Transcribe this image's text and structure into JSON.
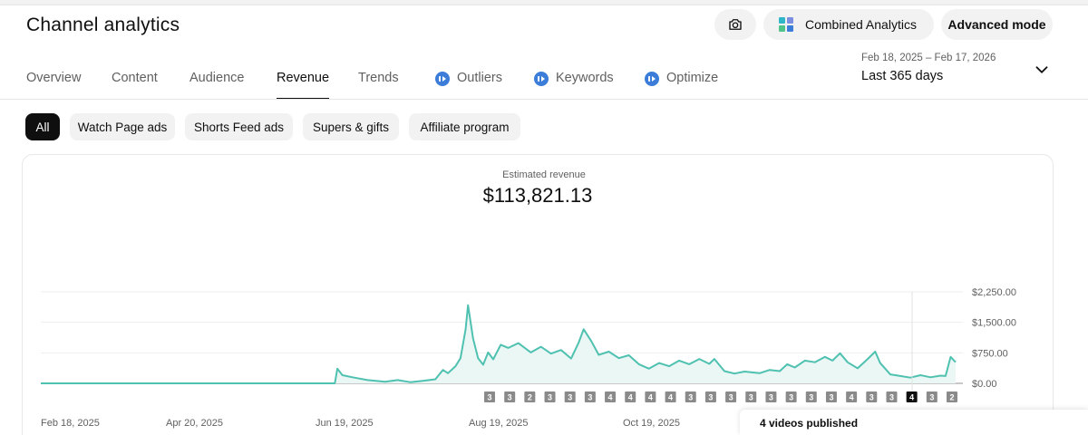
{
  "header": {
    "title": "Channel analytics",
    "combined_label": "Combined Analytics",
    "advanced_label": "Advanced mode"
  },
  "tabs": [
    {
      "label": "Overview",
      "active": false,
      "icon": null
    },
    {
      "label": "Content",
      "active": false,
      "icon": null
    },
    {
      "label": "Audience",
      "active": false,
      "icon": null
    },
    {
      "label": "Revenue",
      "active": true,
      "icon": null
    },
    {
      "label": "Trends",
      "active": false,
      "icon": null
    },
    {
      "label": "Outliers",
      "active": false,
      "icon": "extension-icon"
    },
    {
      "label": "Keywords",
      "active": false,
      "icon": "extension-icon"
    },
    {
      "label": "Optimize",
      "active": false,
      "icon": "extension-icon"
    }
  ],
  "date": {
    "range": "Feb 18, 2025 – Feb 17, 2026",
    "label": "Last 365 days"
  },
  "chips": [
    {
      "label": "All",
      "active": true
    },
    {
      "label": "Watch Page ads",
      "active": false
    },
    {
      "label": "Shorts Feed ads",
      "active": false
    },
    {
      "label": "Supers & gifts",
      "active": false
    },
    {
      "label": "Affiliate program",
      "active": false
    }
  ],
  "metric": {
    "label": "Estimated revenue",
    "value": "$113,821.13"
  },
  "colors": {
    "line": "#4fc1b0",
    "area": "#eaf7f5",
    "grid": "#eeeeee",
    "tab_icon": "#3b7dd8"
  },
  "chart_data": {
    "type": "area",
    "title": "",
    "x_tick_labels": [
      "Feb 18, 2025",
      "Apr 20, 2025",
      "Jun 19, 2025",
      "Aug 19, 2025",
      "Oct 19, 2025"
    ],
    "y_tick_labels": [
      "$2,250.00",
      "$1,500.00",
      "$750.00",
      "$0.00"
    ],
    "ylim": [
      0,
      2250
    ],
    "x_start": "2025-02-18",
    "x_end": "2026-02-17",
    "grid": true,
    "series": [
      {
        "values": [
          [
            "2025-02-18",
            0
          ],
          [
            "2025-06-15",
            0
          ],
          [
            "2025-06-16",
            360
          ],
          [
            "2025-06-18",
            200
          ],
          [
            "2025-06-22",
            150
          ],
          [
            "2025-06-28",
            80
          ],
          [
            "2025-07-05",
            40
          ],
          [
            "2025-07-10",
            80
          ],
          [
            "2025-07-15",
            30
          ],
          [
            "2025-07-20",
            60
          ],
          [
            "2025-07-25",
            100
          ],
          [
            "2025-07-28",
            330
          ],
          [
            "2025-07-30",
            250
          ],
          [
            "2025-08-02",
            420
          ],
          [
            "2025-08-04",
            620
          ],
          [
            "2025-08-06",
            1320
          ],
          [
            "2025-08-07",
            1920
          ],
          [
            "2025-08-09",
            1100
          ],
          [
            "2025-08-11",
            620
          ],
          [
            "2025-08-13",
            460
          ],
          [
            "2025-08-15",
            760
          ],
          [
            "2025-08-17",
            590
          ],
          [
            "2025-08-20",
            950
          ],
          [
            "2025-08-23",
            870
          ],
          [
            "2025-08-27",
            990
          ],
          [
            "2025-09-01",
            760
          ],
          [
            "2025-09-05",
            900
          ],
          [
            "2025-09-09",
            730
          ],
          [
            "2025-09-13",
            820
          ],
          [
            "2025-09-17",
            610
          ],
          [
            "2025-09-20",
            1000
          ],
          [
            "2025-09-22",
            1330
          ],
          [
            "2025-09-25",
            1040
          ],
          [
            "2025-09-28",
            700
          ],
          [
            "2025-10-02",
            780
          ],
          [
            "2025-10-06",
            620
          ],
          [
            "2025-10-10",
            690
          ],
          [
            "2025-10-14",
            470
          ],
          [
            "2025-10-18",
            360
          ],
          [
            "2025-10-22",
            500
          ],
          [
            "2025-10-26",
            420
          ],
          [
            "2025-10-30",
            560
          ],
          [
            "2025-11-03",
            470
          ],
          [
            "2025-11-07",
            600
          ],
          [
            "2025-11-11",
            480
          ],
          [
            "2025-11-13",
            600
          ],
          [
            "2025-11-17",
            300
          ],
          [
            "2025-11-21",
            240
          ],
          [
            "2025-11-25",
            290
          ],
          [
            "2025-12-01",
            250
          ],
          [
            "2025-12-05",
            330
          ],
          [
            "2025-12-09",
            300
          ],
          [
            "2025-12-12",
            470
          ],
          [
            "2025-12-15",
            390
          ],
          [
            "2025-12-19",
            560
          ],
          [
            "2025-12-23",
            520
          ],
          [
            "2025-12-27",
            650
          ],
          [
            "2025-12-30",
            560
          ],
          [
            "2026-01-02",
            740
          ],
          [
            "2026-01-05",
            520
          ],
          [
            "2026-01-09",
            370
          ],
          [
            "2026-01-13",
            600
          ],
          [
            "2026-01-16",
            780
          ],
          [
            "2026-01-18",
            500
          ],
          [
            "2026-01-22",
            220
          ],
          [
            "2026-01-26",
            180
          ],
          [
            "2026-01-30",
            140
          ],
          [
            "2026-02-03",
            200
          ],
          [
            "2026-02-07",
            150
          ],
          [
            "2026-02-11",
            190
          ],
          [
            "2026-02-13",
            180
          ],
          [
            "2026-02-15",
            650
          ],
          [
            "2026-02-17",
            520
          ]
        ]
      }
    ],
    "video_markers": [
      "3",
      "3",
      "2",
      "3",
      "3",
      "3",
      "4",
      "4",
      "4",
      "4",
      "3",
      "3",
      "3",
      "3",
      "3",
      "3",
      "3",
      "3",
      "4",
      "3",
      "3",
      "4",
      "3",
      "2"
    ],
    "selected_marker_index": 21,
    "tooltip": "4 videos published"
  }
}
